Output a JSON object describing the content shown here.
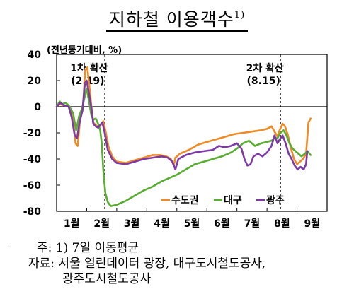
{
  "header": {
    "title": "지하철 이용객수",
    "title_note": "1)"
  },
  "unit_label": "(전년동기대비, %)",
  "left_mark": "-",
  "notes": {
    "note_line": "주: 1) 7일 이동평균",
    "source_line1": "자료: 서울 열린데이터 광장, 대구도시철도공사,",
    "source_line2": "광주도시철도공사"
  },
  "chart_data": {
    "type": "line",
    "title": "지하철 이용객수",
    "ylim": [
      -80,
      40
    ],
    "yticks": [
      -80,
      -60,
      -40,
      -20,
      0,
      20,
      40
    ],
    "xlim": [
      1,
      10
    ],
    "xticks": [
      {
        "x": 1,
        "label": "1월"
      },
      {
        "x": 2,
        "label": "2월"
      },
      {
        "x": 3,
        "label": "3월"
      },
      {
        "x": 4,
        "label": "4월"
      },
      {
        "x": 5,
        "label": "5월"
      },
      {
        "x": 6,
        "label": "6월"
      },
      {
        "x": 7,
        "label": "7월"
      },
      {
        "x": 8,
        "label": "8월"
      },
      {
        "x": 9,
        "label": "9월"
      }
    ],
    "legend_position": "bottom-right",
    "events": [
      {
        "x": 2.6,
        "label1": "1차 확산",
        "label2": "(2.19)"
      },
      {
        "x": 8.45,
        "label1": "2차 확산",
        "label2": "(8.15)"
      }
    ],
    "series": [
      {
        "name": "수도권",
        "color": "#f08a24",
        "points": [
          [
            1.0,
            0
          ],
          [
            1.1,
            2
          ],
          [
            1.25,
            1
          ],
          [
            1.4,
            0
          ],
          [
            1.55,
            -10
          ],
          [
            1.63,
            -28
          ],
          [
            1.7,
            -30
          ],
          [
            1.78,
            -10
          ],
          [
            1.88,
            2
          ],
          [
            1.95,
            28
          ],
          [
            2.02,
            30
          ],
          [
            2.08,
            18
          ],
          [
            2.15,
            2
          ],
          [
            2.22,
            -12
          ],
          [
            2.3,
            -14
          ],
          [
            2.4,
            -16
          ],
          [
            2.5,
            -13
          ],
          [
            2.55,
            -11
          ],
          [
            2.62,
            -18
          ],
          [
            2.72,
            -30
          ],
          [
            2.85,
            -38
          ],
          [
            3.0,
            -42
          ],
          [
            3.3,
            -43
          ],
          [
            3.6,
            -41
          ],
          [
            3.9,
            -39
          ],
          [
            4.2,
            -37
          ],
          [
            4.45,
            -37
          ],
          [
            4.65,
            -38
          ],
          [
            4.8,
            -40
          ],
          [
            4.9,
            -45
          ],
          [
            4.95,
            -39
          ],
          [
            5.1,
            -36
          ],
          [
            5.4,
            -33
          ],
          [
            5.7,
            -29
          ],
          [
            6.0,
            -27
          ],
          [
            6.3,
            -25
          ],
          [
            6.6,
            -23
          ],
          [
            6.9,
            -21
          ],
          [
            7.2,
            -20
          ],
          [
            7.5,
            -19
          ],
          [
            7.8,
            -18
          ],
          [
            8.0,
            -17
          ],
          [
            8.15,
            -15
          ],
          [
            8.25,
            -19
          ],
          [
            8.35,
            -23
          ],
          [
            8.42,
            -18
          ],
          [
            8.52,
            -13
          ],
          [
            8.6,
            -15
          ],
          [
            8.7,
            -22
          ],
          [
            8.8,
            -32
          ],
          [
            8.9,
            -40
          ],
          [
            9.0,
            -44
          ],
          [
            9.1,
            -42
          ],
          [
            9.2,
            -40
          ],
          [
            9.3,
            -36
          ],
          [
            9.38,
            -12
          ],
          [
            9.45,
            -9
          ]
        ]
      },
      {
        "name": "대구",
        "color": "#5aad32",
        "points": [
          [
            1.0,
            0
          ],
          [
            1.1,
            4
          ],
          [
            1.2,
            2
          ],
          [
            1.3,
            3
          ],
          [
            1.4,
            1
          ],
          [
            1.55,
            -5
          ],
          [
            1.65,
            -18
          ],
          [
            1.75,
            -7
          ],
          [
            1.85,
            -1
          ],
          [
            1.92,
            6
          ],
          [
            2.0,
            14
          ],
          [
            2.08,
            4
          ],
          [
            2.15,
            -6
          ],
          [
            2.22,
            -10
          ],
          [
            2.3,
            -9
          ],
          [
            2.38,
            -13
          ],
          [
            2.45,
            -18
          ],
          [
            2.5,
            -28
          ],
          [
            2.55,
            -48
          ],
          [
            2.62,
            -66
          ],
          [
            2.7,
            -73
          ],
          [
            2.8,
            -76
          ],
          [
            3.0,
            -75
          ],
          [
            3.3,
            -72
          ],
          [
            3.6,
            -68
          ],
          [
            3.9,
            -64
          ],
          [
            4.2,
            -61
          ],
          [
            4.5,
            -57
          ],
          [
            4.8,
            -54
          ],
          [
            5.0,
            -52
          ],
          [
            5.3,
            -48
          ],
          [
            5.6,
            -44
          ],
          [
            5.9,
            -42
          ],
          [
            6.2,
            -40
          ],
          [
            6.5,
            -38
          ],
          [
            6.8,
            -35
          ],
          [
            7.0,
            -32
          ],
          [
            7.2,
            -28
          ],
          [
            7.4,
            -26
          ],
          [
            7.6,
            -30
          ],
          [
            7.8,
            -28
          ],
          [
            8.0,
            -27
          ],
          [
            8.15,
            -26
          ],
          [
            8.25,
            -24
          ],
          [
            8.35,
            -24
          ],
          [
            8.45,
            -20
          ],
          [
            8.55,
            -18
          ],
          [
            8.65,
            -22
          ],
          [
            8.75,
            -28
          ],
          [
            8.85,
            -32
          ],
          [
            8.95,
            -34
          ],
          [
            9.05,
            -36
          ],
          [
            9.15,
            -38
          ],
          [
            9.25,
            -36
          ],
          [
            9.35,
            -34
          ],
          [
            9.45,
            -37
          ]
        ]
      },
      {
        "name": "광주",
        "color": "#7d3aa6",
        "points": [
          [
            1.0,
            0
          ],
          [
            1.12,
            3
          ],
          [
            1.25,
            1
          ],
          [
            1.4,
            0
          ],
          [
            1.5,
            -8
          ],
          [
            1.6,
            -22
          ],
          [
            1.68,
            -24
          ],
          [
            1.76,
            -12
          ],
          [
            1.86,
            -3
          ],
          [
            1.94,
            18
          ],
          [
            2.0,
            20
          ],
          [
            2.08,
            10
          ],
          [
            2.15,
            0
          ],
          [
            2.22,
            -13
          ],
          [
            2.3,
            -15
          ],
          [
            2.38,
            -16
          ],
          [
            2.45,
            -14
          ],
          [
            2.52,
            -12
          ],
          [
            2.6,
            -20
          ],
          [
            2.7,
            -33
          ],
          [
            2.85,
            -40
          ],
          [
            3.0,
            -43
          ],
          [
            3.3,
            -44
          ],
          [
            3.6,
            -42
          ],
          [
            3.9,
            -40
          ],
          [
            4.2,
            -39
          ],
          [
            4.5,
            -38
          ],
          [
            4.7,
            -39
          ],
          [
            4.85,
            -42
          ],
          [
            4.95,
            -48
          ],
          [
            5.05,
            -40
          ],
          [
            5.3,
            -37
          ],
          [
            5.6,
            -35
          ],
          [
            5.9,
            -34
          ],
          [
            6.2,
            -33
          ],
          [
            6.4,
            -30
          ],
          [
            6.6,
            -31
          ],
          [
            6.8,
            -30
          ],
          [
            7.0,
            -28
          ],
          [
            7.15,
            -32
          ],
          [
            7.25,
            -40
          ],
          [
            7.35,
            -45
          ],
          [
            7.45,
            -44
          ],
          [
            7.55,
            -38
          ],
          [
            7.7,
            -36
          ],
          [
            7.85,
            -38
          ],
          [
            8.0,
            -35
          ],
          [
            8.15,
            -30
          ],
          [
            8.25,
            -22
          ],
          [
            8.35,
            -28
          ],
          [
            8.45,
            -24
          ],
          [
            8.52,
            -22
          ],
          [
            8.62,
            -28
          ],
          [
            8.72,
            -36
          ],
          [
            8.82,
            -40
          ],
          [
            8.92,
            -45
          ],
          [
            9.02,
            -48
          ],
          [
            9.12,
            -46
          ],
          [
            9.22,
            -48
          ],
          [
            9.3,
            -44
          ],
          [
            9.34,
            -34
          ]
        ]
      }
    ]
  }
}
